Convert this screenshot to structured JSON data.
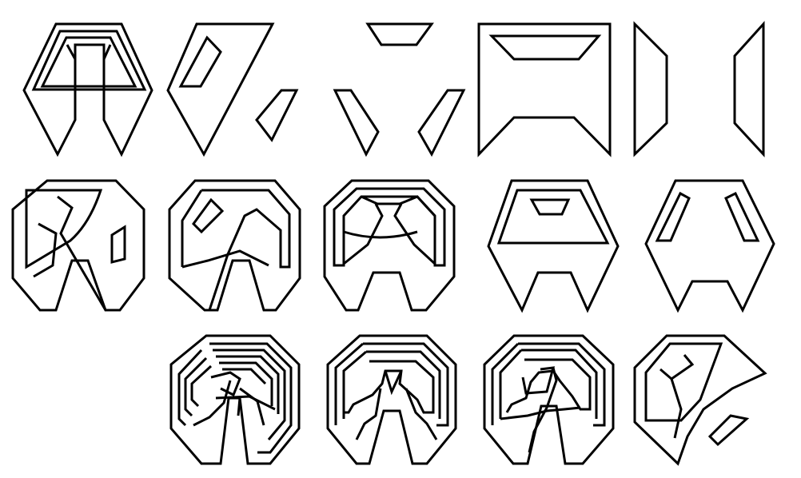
{
  "figure": {
    "line_color": "#000000",
    "background": "#ffffff",
    "panel_count": 14,
    "rows": [
      {
        "panels": [
          "fig-r1-c1",
          "fig-r1-c2",
          "fig-r1-c3",
          "fig-r1-c4",
          "fig-r1-c5"
        ]
      },
      {
        "panels": [
          "fig-r2-c1",
          "fig-r2-c2",
          "fig-r2-c3",
          "fig-r2-c4",
          "fig-r2-c5"
        ]
      },
      {
        "panels": [
          "fig-r3-c2",
          "fig-r3-c3",
          "fig-r3-c4",
          "fig-r3-c5"
        ]
      }
    ]
  }
}
